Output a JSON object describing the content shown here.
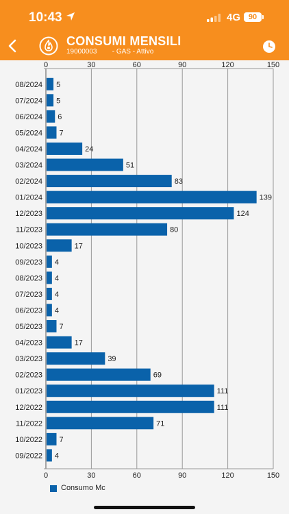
{
  "status_bar": {
    "time": "10:43",
    "network": "4G",
    "battery": "90"
  },
  "header": {
    "title": "CONSUMI MENSILI",
    "account": "19000003",
    "service": "- GAS - Attivo",
    "icons": {
      "back": "chevron-left-icon",
      "brand": "flame-icon",
      "history": "clock-icon"
    }
  },
  "colors": {
    "header_bg": "#f78e1e",
    "bar": "#0a62aa",
    "background": "#f4f4f4"
  },
  "chart_data": {
    "type": "bar",
    "orientation": "horizontal",
    "categories": [
      "08/2024",
      "07/2024",
      "06/2024",
      "05/2024",
      "04/2024",
      "03/2024",
      "02/2024",
      "01/2024",
      "12/2023",
      "11/2023",
      "10/2023",
      "09/2023",
      "08/2023",
      "07/2023",
      "06/2023",
      "05/2023",
      "04/2023",
      "03/2023",
      "02/2023",
      "01/2023",
      "12/2022",
      "11/2022",
      "10/2022",
      "09/2022"
    ],
    "series": [
      {
        "name": "Consumo Mc",
        "values": [
          5,
          5,
          6,
          7,
          24,
          51,
          83,
          139,
          124,
          80,
          17,
          4,
          4,
          4,
          4,
          7,
          17,
          39,
          69,
          111,
          111,
          71,
          7,
          4
        ]
      }
    ],
    "xticks": [
      0,
      30,
      60,
      90,
      120,
      150
    ],
    "xlim": [
      0,
      150
    ],
    "grid": true,
    "axis_labels_position": "top-and-bottom",
    "legend_position": "bottom-left"
  }
}
